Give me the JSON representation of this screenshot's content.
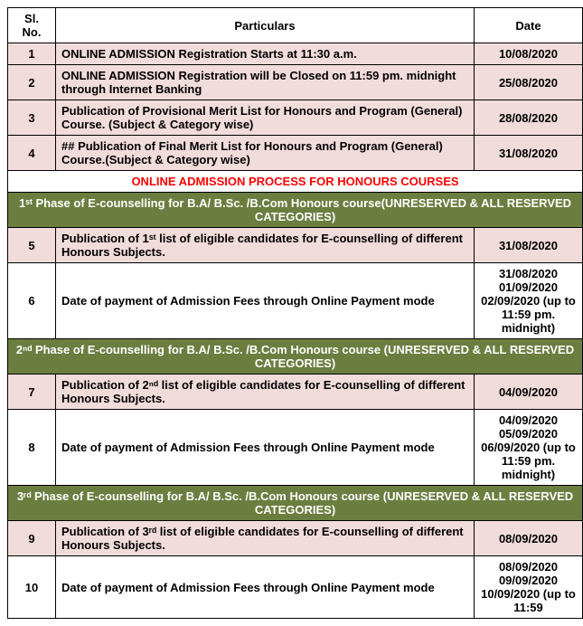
{
  "headers": {
    "sl_no": "Sl. No.",
    "particulars": "Particulars",
    "date": "Date"
  },
  "rows": {
    "r1": {
      "no": "1",
      "text": "ONLINE ADMISSION Registration Starts at 11:30 a.m.",
      "date": "10/08/2020"
    },
    "r2": {
      "no": "2",
      "text": "ONLINE ADMISSION Registration will be Closed on 11:59 pm. midnight through Internet Banking",
      "date": "25/08/2020"
    },
    "r3": {
      "no": "3",
      "text": "Publication of Provisional Merit List for Honours and Program (General) Course. (Subject & Category wise)",
      "date": "28/08/2020"
    },
    "r4": {
      "no": "4",
      "text": "## Publication of Final Merit List for Honours and Program (General) Course.(Subject & Category wise)",
      "date": "31/08/2020"
    },
    "banner1": "ONLINE ADMISSION PROCESS FOR HONOURS COURSES",
    "phase1": "1ˢᵗ Phase of E-counselling for B.A/ B.Sc. /B.Com Honours course(UNRESERVED & ALL RESERVED CATEGORIES)",
    "r5": {
      "no": "5",
      "text": "Publication of 1ˢᵗ list of eligible candidates for E-counselling of different Honours  Subjects.",
      "date": "31/08/2020"
    },
    "r6": {
      "no": "6",
      "text": "Date of payment of Admission Fees through Online Payment mode",
      "date": "31/08/2020 01/09/2020 02/09/2020 (up to 11:59 pm. midnight)"
    },
    "phase2": "2ⁿᵈ Phase of E-counselling for B.A/ B.Sc. /B.Com  Honours course (UNRESERVED & ALL RESERVED CATEGORIES)",
    "r7": {
      "no": "7",
      "text": "Publication of 2ⁿᵈ list of eligible candidates for E-counselling of different Honours Subjects.",
      "date": "04/09/2020"
    },
    "r8": {
      "no": "8",
      "text": "Date of payment of Admission Fees through Online Payment mode",
      "date": "04/09/2020 05/09/2020 06/09/2020 (up to 11:59 pm. midnight)"
    },
    "phase3": "3ʳᵈ  Phase of E-counselling  for B.A/ B.Sc. /B.Com Honours course (UNRESERVED & ALL RESERVED CATEGORIES)",
    "r9": {
      "no": "9",
      "text": "Publication of 3ʳᵈ list of eligible candidates for E-counselling of different Honours Subjects.",
      "date": "08/09/2020"
    },
    "r10": {
      "no": "10",
      "text": "Date of payment of Admission Fees through Online Payment mode",
      "date": "08/09/2020 09/09/2020 10/09/2020 (up to 11:59"
    }
  },
  "colors": {
    "pink": "#f2dcdb",
    "green": "#6b7e3f",
    "red_text": "#ff0000",
    "border": "#000000"
  }
}
